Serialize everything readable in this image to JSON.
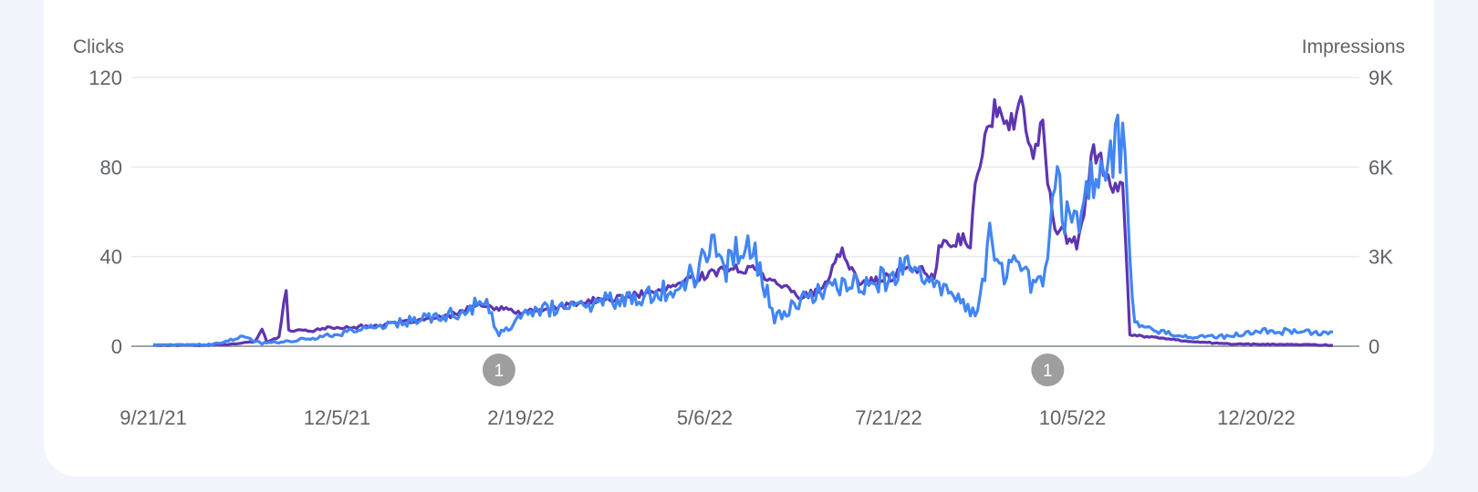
{
  "chart_data": {
    "type": "line",
    "left_axis": {
      "label": "Clicks",
      "ticks": [
        {
          "value": 0,
          "label": "0"
        },
        {
          "value": 40,
          "label": "40"
        },
        {
          "value": 80,
          "label": "80"
        },
        {
          "value": 120,
          "label": "120"
        }
      ],
      "range": [
        0,
        120
      ]
    },
    "right_axis": {
      "label": "Impressions",
      "ticks": [
        {
          "value": 0,
          "label": "0"
        },
        {
          "value": 3000,
          "label": "3K"
        },
        {
          "value": 6000,
          "label": "6K"
        },
        {
          "value": 9000,
          "label": "9K"
        }
      ],
      "range": [
        0,
        9000
      ]
    },
    "x_axis": {
      "range": [
        "2021-09-21",
        "2023-01-22"
      ],
      "tick_labels": [
        "9/21/21",
        "12/5/21",
        "2/19/22",
        "5/6/22",
        "7/21/22",
        "10/5/22",
        "12/20/22"
      ]
    },
    "annotations": [
      {
        "date": "2022-02-11",
        "label": "1"
      },
      {
        "date": "2022-09-26",
        "label": "1"
      }
    ],
    "series": [
      {
        "color": "#5e35b1",
        "axis": "left",
        "points": [
          [
            "2021-09-21",
            0.5
          ],
          [
            "2021-10-10",
            0.5
          ],
          [
            "2021-10-25",
            1
          ],
          [
            "2021-11-02",
            2
          ],
          [
            "2021-11-05",
            8
          ],
          [
            "2021-11-07",
            2
          ],
          [
            "2021-11-12",
            4
          ],
          [
            "2021-11-15",
            26
          ],
          [
            "2021-11-16",
            7
          ],
          [
            "2021-11-25",
            7
          ],
          [
            "2021-12-01",
            8
          ],
          [
            "2021-12-20",
            9
          ],
          [
            "2022-01-05",
            11
          ],
          [
            "2022-01-20",
            13
          ],
          [
            "2022-02-01",
            18
          ],
          [
            "2022-02-10",
            17
          ],
          [
            "2022-02-20",
            15
          ],
          [
            "2022-03-05",
            17
          ],
          [
            "2022-03-20",
            20
          ],
          [
            "2022-04-05",
            22
          ],
          [
            "2022-04-20",
            25
          ],
          [
            "2022-05-01",
            30
          ],
          [
            "2022-05-10",
            33
          ],
          [
            "2022-05-25",
            35
          ],
          [
            "2022-06-05",
            30
          ],
          [
            "2022-06-15",
            22
          ],
          [
            "2022-06-25",
            25
          ],
          [
            "2022-07-03",
            43
          ],
          [
            "2022-07-10",
            28
          ],
          [
            "2022-07-20",
            30
          ],
          [
            "2022-08-01",
            35
          ],
          [
            "2022-08-10",
            31
          ],
          [
            "2022-08-12",
            44
          ],
          [
            "2022-08-20",
            48
          ],
          [
            "2022-08-25",
            46
          ],
          [
            "2022-08-28",
            80
          ],
          [
            "2022-09-01",
            100
          ],
          [
            "2022-09-05",
            109
          ],
          [
            "2022-09-10",
            95
          ],
          [
            "2022-09-15",
            108
          ],
          [
            "2022-09-20",
            85
          ],
          [
            "2022-09-24",
            97
          ],
          [
            "2022-09-26",
            75
          ],
          [
            "2022-09-29",
            55
          ],
          [
            "2022-10-03",
            50
          ],
          [
            "2022-10-08",
            45
          ],
          [
            "2022-10-12",
            65
          ],
          [
            "2022-10-15",
            90
          ],
          [
            "2022-10-20",
            80
          ],
          [
            "2022-10-25",
            65
          ],
          [
            "2022-10-27",
            75
          ],
          [
            "2022-10-30",
            5
          ],
          [
            "2022-11-10",
            4
          ],
          [
            "2022-11-25",
            2
          ],
          [
            "2022-12-10",
            1
          ],
          [
            "2023-01-22",
            0.5
          ]
        ]
      },
      {
        "color": "#4285f4",
        "axis": "right",
        "points": [
          [
            "2021-09-21",
            50
          ],
          [
            "2021-10-15",
            50
          ],
          [
            "2021-10-28",
            300
          ],
          [
            "2021-11-05",
            100
          ],
          [
            "2021-11-20",
            200
          ],
          [
            "2021-12-05",
            400
          ],
          [
            "2021-12-25",
            700
          ],
          [
            "2022-01-10",
            900
          ],
          [
            "2022-01-25",
            1100
          ],
          [
            "2022-02-05",
            1500
          ],
          [
            "2022-02-11",
            400
          ],
          [
            "2022-02-25",
            1200
          ],
          [
            "2022-03-10",
            1300
          ],
          [
            "2022-03-25",
            1500
          ],
          [
            "2022-04-10",
            1700
          ],
          [
            "2022-04-25",
            2000
          ],
          [
            "2022-05-05",
            2500
          ],
          [
            "2022-05-10",
            3700
          ],
          [
            "2022-05-15",
            2500
          ],
          [
            "2022-05-25",
            3800
          ],
          [
            "2022-06-01",
            2000
          ],
          [
            "2022-06-05",
            900
          ],
          [
            "2022-06-15",
            1500
          ],
          [
            "2022-06-25",
            1800
          ],
          [
            "2022-07-05",
            2000
          ],
          [
            "2022-07-20",
            2300
          ],
          [
            "2022-08-01",
            2700
          ],
          [
            "2022-08-10",
            2000
          ],
          [
            "2022-08-20",
            1600
          ],
          [
            "2022-08-28",
            1000
          ],
          [
            "2022-09-03",
            4000
          ],
          [
            "2022-09-08",
            2000
          ],
          [
            "2022-09-12",
            3200
          ],
          [
            "2022-09-18",
            2200
          ],
          [
            "2022-09-25",
            2400
          ],
          [
            "2022-09-28",
            5000
          ],
          [
            "2022-10-01",
            5300
          ],
          [
            "2022-10-05",
            3800
          ],
          [
            "2022-10-10",
            4500
          ],
          [
            "2022-10-14",
            6200
          ],
          [
            "2022-10-18",
            5500
          ],
          [
            "2022-10-22",
            6500
          ],
          [
            "2022-10-25",
            7400
          ],
          [
            "2022-10-28",
            5700
          ],
          [
            "2022-11-01",
            800
          ],
          [
            "2022-11-10",
            500
          ],
          [
            "2022-11-25",
            300
          ],
          [
            "2022-12-10",
            350
          ],
          [
            "2022-12-25",
            500
          ],
          [
            "2023-01-05",
            500
          ],
          [
            "2023-01-22",
            450
          ]
        ]
      }
    ]
  }
}
